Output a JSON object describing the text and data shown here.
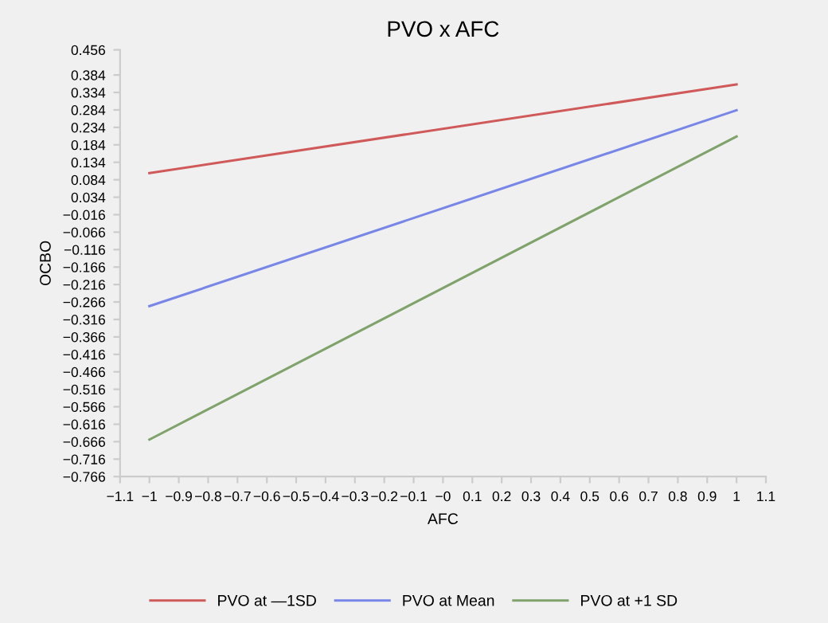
{
  "chart_data": {
    "type": "line",
    "title": "PVO x AFC",
    "xlabel": "AFC",
    "ylabel": "OCBO",
    "x": [
      -1,
      1
    ],
    "series": [
      {
        "name": "PVO at —1SD",
        "color": "#d05a5a",
        "values": [
          0.103,
          0.357
        ]
      },
      {
        "name": "PVO at Mean",
        "color": "#7886e8",
        "values": [
          -0.278,
          0.283
        ]
      },
      {
        "name": "PVO at +1 SD",
        "color": "#7fa36b",
        "values": [
          -0.66,
          0.208
        ]
      }
    ],
    "xlim": [
      -1.1,
      1.1
    ],
    "xticks": [
      {
        "value": -1.1,
        "label": "−1.1"
      },
      {
        "value": -1,
        "label": "−1"
      },
      {
        "value": -0.9,
        "label": "−0.9"
      },
      {
        "value": -0.8,
        "label": "−0.8"
      },
      {
        "value": -0.7,
        "label": "−0.7"
      },
      {
        "value": -0.6,
        "label": "−0.6"
      },
      {
        "value": -0.5,
        "label": "−0.5"
      },
      {
        "value": -0.4,
        "label": "−0.4"
      },
      {
        "value": -0.3,
        "label": "−0.3"
      },
      {
        "value": -0.2,
        "label": "−0.2"
      },
      {
        "value": -0.1,
        "label": "−0.1"
      },
      {
        "value": 0,
        "label": "−0"
      },
      0.1,
      0.2,
      0.3,
      0.4,
      0.5,
      0.6,
      0.7,
      0.8,
      0.9,
      1,
      1.1
    ],
    "ylim": [
      -0.766,
      0.456
    ],
    "yticks": [
      {
        "value": -0.766,
        "label": "−0.766"
      },
      {
        "value": -0.716,
        "label": "−0.716"
      },
      {
        "value": -0.666,
        "label": "−0.666"
      },
      {
        "value": -0.616,
        "label": "−0.616"
      },
      {
        "value": -0.566,
        "label": "−0.566"
      },
      {
        "value": -0.516,
        "label": "−0.516"
      },
      {
        "value": -0.466,
        "label": "−0.466"
      },
      {
        "value": -0.416,
        "label": "−0.416"
      },
      {
        "value": -0.366,
        "label": "−0.366"
      },
      {
        "value": -0.316,
        "label": "−0.316"
      },
      {
        "value": -0.266,
        "label": "−0.266"
      },
      {
        "value": -0.216,
        "label": "−0.216"
      },
      {
        "value": -0.166,
        "label": "−0.166"
      },
      {
        "value": -0.116,
        "label": "−0.116"
      },
      {
        "value": -0.066,
        "label": "−0.066"
      },
      {
        "value": -0.016,
        "label": "−0.016"
      },
      0.034,
      0.084,
      0.134,
      0.184,
      0.234,
      0.284,
      0.334,
      0.384,
      0.456
    ],
    "legend": "bottom",
    "grid": false,
    "marker": "none",
    "line_style": "solid"
  }
}
